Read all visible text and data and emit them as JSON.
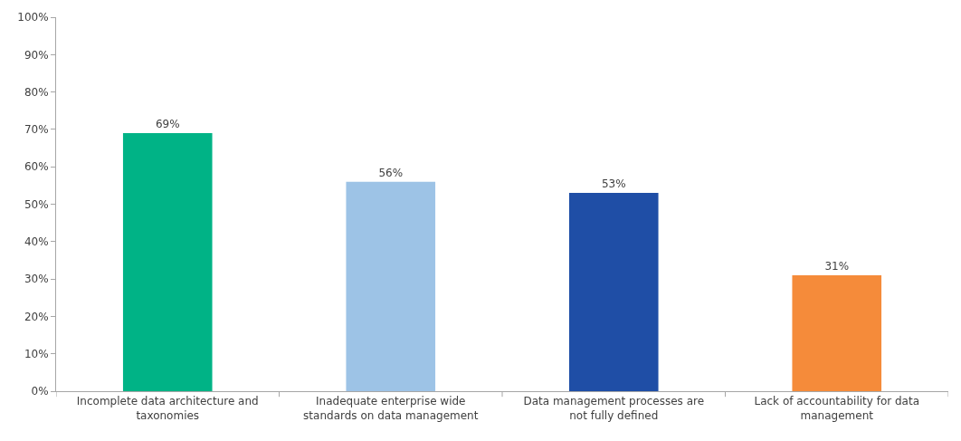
{
  "chart_data": {
    "type": "bar",
    "categories": [
      "Incomplete data architecture and taxonomies",
      "Inadequate enterprise wide standards on data management",
      "Data management processes are not fully defined",
      "Lack of accountability for data management"
    ],
    "values": [
      69,
      56,
      53,
      31
    ],
    "colors": [
      "#00b386",
      "#9dc3e6",
      "#1f4ea6",
      "#f58b3a"
    ],
    "value_labels": [
      "69%",
      "56%",
      "53%",
      "31%"
    ],
    "ylim": [
      0,
      100
    ],
    "yticks": [
      {
        "value": 0,
        "label": "0%"
      },
      {
        "value": 10,
        "label": "10%"
      },
      {
        "value": 20,
        "label": "20%"
      },
      {
        "value": 30,
        "label": "30%"
      },
      {
        "value": 40,
        "label": "40%"
      },
      {
        "value": 50,
        "label": "50%"
      },
      {
        "value": 60,
        "label": "60%"
      },
      {
        "value": 70,
        "label": "70%"
      },
      {
        "value": 80,
        "label": "80%"
      },
      {
        "value": 90,
        "label": "90%"
      },
      {
        "value": 100,
        "label": "100%"
      }
    ],
    "grid": false
  }
}
